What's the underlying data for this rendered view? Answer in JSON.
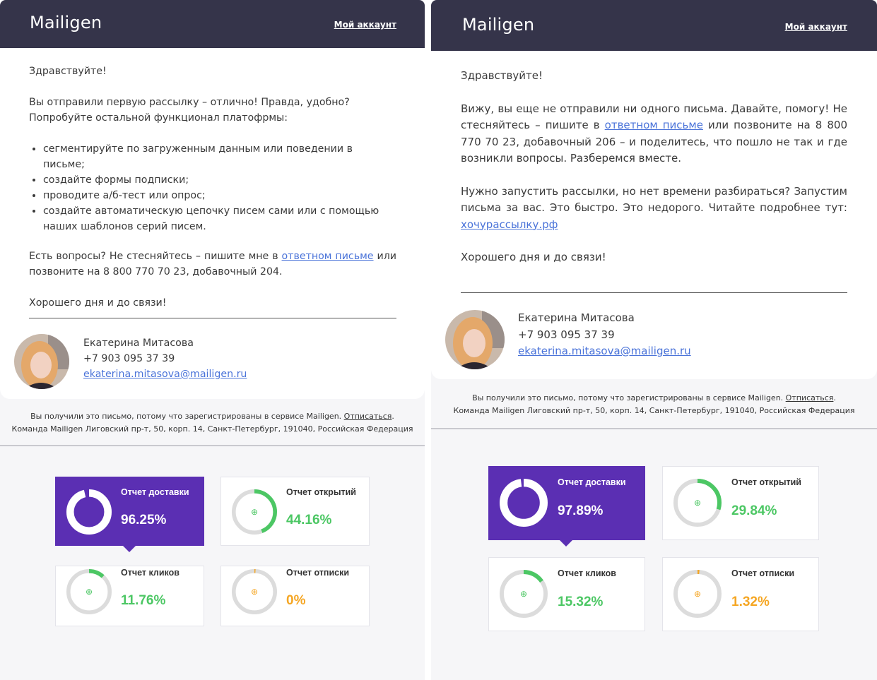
{
  "colors": {
    "header": "#35344a",
    "accent": "#5b2fb3",
    "green": "#4cc764",
    "orange": "#f5a623",
    "link": "#4a73d9"
  },
  "left": {
    "brand": "Mailigen",
    "account": "Мой аккаунт",
    "greeting": "Здравствуйте!",
    "intro": "Вы отправили первую рассылку – отлично! Правда, удобно? Попробуйте остальной функционал платофрмы:",
    "bullets": [
      "сегментируйте по загруженным данным или поведении в письме;",
      "создайте формы подписки;",
      "проводите а/б-тест или опрос;",
      "создайте автоматическую цепочку писем сами или с помощью наших шаблонов серий писем."
    ],
    "questions_pre": "Есть вопросы? Не стесняйтесь – пишите мне в ",
    "questions_link": "ответном письме",
    "questions_post": " или позвоните на 8 800 770 70 23, добавочный 204.",
    "closing": "Хорошего дня и до связи!",
    "sig_name": "Екатерина Митасова",
    "sig_phone": "+7 903 095 37 39",
    "sig_email": "ekaterina.mitasova@mailigen.ru",
    "footer_line1": "Вы получили это письмо, потому что зарегистрированы в сервисе Mailigen. ",
    "footer_unsub": "Отписаться",
    "footer_dot": ".",
    "footer_line2": "Команда Mailigen  Лиговский пр-т, 50, корп. 14, Санкт-Петербург, 191040, Российская Федерация",
    "stats": [
      {
        "title": "Отчет доставки",
        "value": "96.25%",
        "fraction": 0.9625,
        "color": "#ffffff",
        "active": true
      },
      {
        "title": "Отчет открытий",
        "value": "44.16%",
        "fraction": 0.4416,
        "color": "#4cc764",
        "active": false
      },
      {
        "title": "Отчет кликов",
        "value": "11.76%",
        "fraction": 0.1176,
        "color": "#4cc764",
        "active": false
      },
      {
        "title": "Отчет отписки",
        "value": "0%",
        "fraction": 0.0,
        "color": "#f5a623",
        "active": false
      }
    ]
  },
  "right": {
    "brand": "Mailigen",
    "account": "Мой аккаунт",
    "greeting": "Здравствуйте!",
    "para1_pre": "Вижу, вы еще не отправили ни одного письма. Давайте, помогу! Не стесняйтесь – пишите в ",
    "para1_link": "ответном письме",
    "para1_post": " или позвоните на 8 800 770 70 23, добавочный 206 – и поделитесь, что пошло не так и где возникли вопросы. Разберемся вместе.",
    "para2_pre": "Нужно запустить рассылки, но нет времени разбираться? Запустим письма за вас. Это быстро. Это недорого. Читайте подробнее тут: ",
    "para2_link": "хочурассылку.рф",
    "closing": "Хорошего дня и до связи!",
    "sig_name": "Екатерина Митасова",
    "sig_phone": "+7 903 095 37 39",
    "sig_email": "ekaterina.mitasova@mailigen.ru",
    "footer_line1": "Вы получили это письмо, потому что зарегистрированы в сервисе Mailigen. ",
    "footer_unsub": "Отписаться",
    "footer_dot": ".",
    "footer_line2": "Команда Mailigen  Лиговский пр-т, 50, корп. 14, Санкт-Петербург, 191040, Российская Федерация",
    "stats": [
      {
        "title": "Отчет доставки",
        "value": "97.89%",
        "fraction": 0.9789,
        "color": "#ffffff",
        "active": true
      },
      {
        "title": "Отчет открытий",
        "value": "29.84%",
        "fraction": 0.2984,
        "color": "#4cc764",
        "active": false
      },
      {
        "title": "Отчет кликов",
        "value": "15.32%",
        "fraction": 0.1532,
        "color": "#4cc764",
        "active": false
      },
      {
        "title": "Отчет отписки",
        "value": "1.32%",
        "fraction": 0.0132,
        "color": "#f5a623",
        "active": false
      }
    ]
  }
}
